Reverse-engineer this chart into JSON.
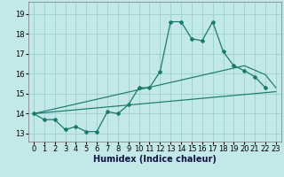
{
  "xlabel": "Humidex (Indice chaleur)",
  "background_color": "#c2e8e8",
  "grid_color": "#9ecece",
  "line_color": "#1a7a6e",
  "xlim": [
    -0.5,
    23.5
  ],
  "ylim": [
    12.6,
    19.6
  ],
  "x_ticks": [
    0,
    1,
    2,
    3,
    4,
    5,
    6,
    7,
    8,
    9,
    10,
    11,
    12,
    13,
    14,
    15,
    16,
    17,
    18,
    19,
    20,
    21,
    22,
    23
  ],
  "y_ticks": [
    13,
    14,
    15,
    16,
    17,
    18,
    19
  ],
  "series1_x": [
    0,
    1,
    2,
    3,
    4,
    5,
    6,
    7,
    8,
    9,
    10,
    11,
    12,
    13,
    14,
    15,
    16,
    17,
    18,
    19,
    20,
    21,
    22
  ],
  "series1_y": [
    14.0,
    13.7,
    13.7,
    13.2,
    13.35,
    13.1,
    13.1,
    14.1,
    14.0,
    14.45,
    15.3,
    15.3,
    16.1,
    18.6,
    18.6,
    17.75,
    17.65,
    18.6,
    17.1,
    16.4,
    16.15,
    15.85,
    15.3
  ],
  "series2_x": [
    0,
    23
  ],
  "series2_y": [
    14.0,
    15.1
  ],
  "series3_x": [
    0,
    20,
    22,
    23
  ],
  "series3_y": [
    14.0,
    16.4,
    15.95,
    15.3
  ],
  "font_size_axis": 7,
  "font_size_tick": 6
}
